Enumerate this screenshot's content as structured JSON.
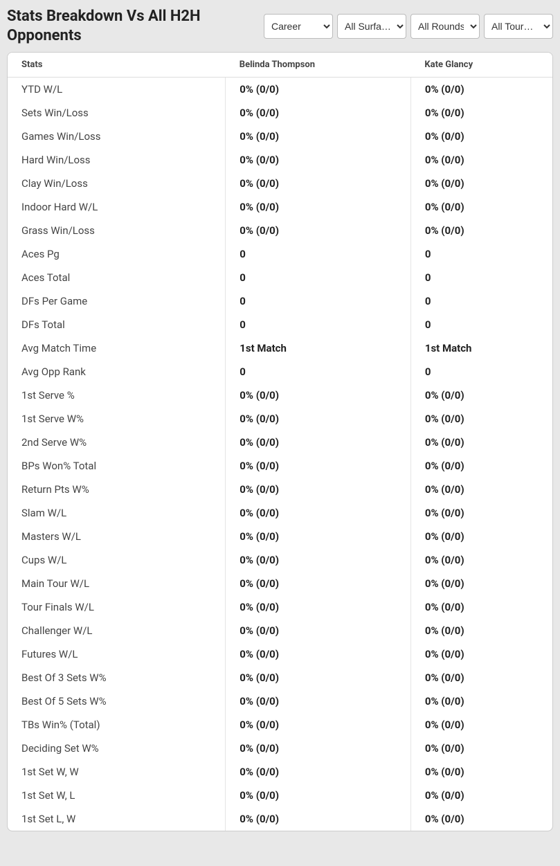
{
  "header": {
    "title": "Stats Breakdown Vs All H2H Opponents"
  },
  "filters": {
    "period": {
      "selected": "Career",
      "options": [
        "Career"
      ]
    },
    "surface": {
      "selected": "All Surfa…",
      "options": [
        "All Surfa…"
      ]
    },
    "rounds": {
      "selected": "All Rounds",
      "options": [
        "All Rounds"
      ]
    },
    "tournaments": {
      "selected": "All Tour…",
      "options": [
        "All Tour…"
      ]
    }
  },
  "table": {
    "columns": {
      "stats": "Stats",
      "player1": "Belinda Thompson",
      "player2": "Kate Glancy"
    },
    "rows": [
      {
        "label": "YTD W/L",
        "p1": "0% (0/0)",
        "p2": "0% (0/0)"
      },
      {
        "label": "Sets Win/Loss",
        "p1": "0% (0/0)",
        "p2": "0% (0/0)"
      },
      {
        "label": "Games Win/Loss",
        "p1": "0% (0/0)",
        "p2": "0% (0/0)"
      },
      {
        "label": "Hard Win/Loss",
        "p1": "0% (0/0)",
        "p2": "0% (0/0)"
      },
      {
        "label": "Clay Win/Loss",
        "p1": "0% (0/0)",
        "p2": "0% (0/0)"
      },
      {
        "label": "Indoor Hard W/L",
        "p1": "0% (0/0)",
        "p2": "0% (0/0)"
      },
      {
        "label": "Grass Win/Loss",
        "p1": "0% (0/0)",
        "p2": "0% (0/0)"
      },
      {
        "label": "Aces Pg",
        "p1": "0",
        "p2": "0"
      },
      {
        "label": "Aces Total",
        "p1": "0",
        "p2": "0"
      },
      {
        "label": "DFs Per Game",
        "p1": "0",
        "p2": "0"
      },
      {
        "label": "DFs Total",
        "p1": "0",
        "p2": "0"
      },
      {
        "label": "Avg Match Time",
        "p1": "1st Match",
        "p2": "1st Match"
      },
      {
        "label": "Avg Opp Rank",
        "p1": "0",
        "p2": "0"
      },
      {
        "label": "1st Serve %",
        "p1": "0% (0/0)",
        "p2": "0% (0/0)"
      },
      {
        "label": "1st Serve W%",
        "p1": "0% (0/0)",
        "p2": "0% (0/0)"
      },
      {
        "label": "2nd Serve W%",
        "p1": "0% (0/0)",
        "p2": "0% (0/0)"
      },
      {
        "label": "BPs Won% Total",
        "p1": "0% (0/0)",
        "p2": "0% (0/0)"
      },
      {
        "label": "Return Pts W%",
        "p1": "0% (0/0)",
        "p2": "0% (0/0)"
      },
      {
        "label": "Slam W/L",
        "p1": "0% (0/0)",
        "p2": "0% (0/0)"
      },
      {
        "label": "Masters W/L",
        "p1": "0% (0/0)",
        "p2": "0% (0/0)"
      },
      {
        "label": "Cups W/L",
        "p1": "0% (0/0)",
        "p2": "0% (0/0)"
      },
      {
        "label": "Main Tour W/L",
        "p1": "0% (0/0)",
        "p2": "0% (0/0)"
      },
      {
        "label": "Tour Finals W/L",
        "p1": "0% (0/0)",
        "p2": "0% (0/0)"
      },
      {
        "label": "Challenger W/L",
        "p1": "0% (0/0)",
        "p2": "0% (0/0)"
      },
      {
        "label": "Futures W/L",
        "p1": "0% (0/0)",
        "p2": "0% (0/0)"
      },
      {
        "label": "Best Of 3 Sets W%",
        "p1": "0% (0/0)",
        "p2": "0% (0/0)"
      },
      {
        "label": "Best Of 5 Sets W%",
        "p1": "0% (0/0)",
        "p2": "0% (0/0)"
      },
      {
        "label": "TBs Win% (Total)",
        "p1": "0% (0/0)",
        "p2": "0% (0/0)"
      },
      {
        "label": "Deciding Set W%",
        "p1": "0% (0/0)",
        "p2": "0% (0/0)"
      },
      {
        "label": "1st Set W, W",
        "p1": "0% (0/0)",
        "p2": "0% (0/0)"
      },
      {
        "label": "1st Set W, L",
        "p1": "0% (0/0)",
        "p2": "0% (0/0)"
      },
      {
        "label": "1st Set L, W",
        "p1": "0% (0/0)",
        "p2": "0% (0/0)"
      }
    ]
  }
}
